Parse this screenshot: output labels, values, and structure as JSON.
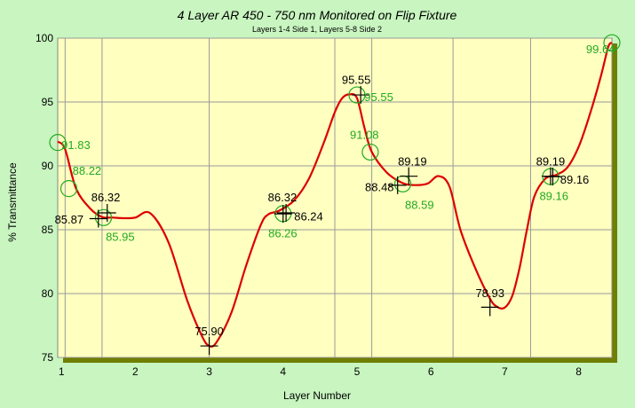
{
  "chart_data": {
    "type": "line",
    "title": "4 Layer AR 450 - 750 nm Monitored on Flip Fixture",
    "subtitle": "Layers 1-4 Side 1, Layers 5-8 Side 2",
    "xlabel": "Layer Number",
    "ylabel": "% Transmittance",
    "xlim": [
      0.95,
      8.45
    ],
    "ylim": [
      75,
      100
    ],
    "y_ticks": [
      75,
      80,
      85,
      90,
      95,
      100
    ],
    "x_ticks": [
      1,
      2,
      3,
      4,
      5,
      6,
      7,
      8
    ],
    "grid_x": [
      1.05,
      1.55,
      3.0,
      4.7,
      5.2,
      6.3,
      7.35
    ],
    "curve": {
      "color": "#dd0000",
      "x": [
        0.95,
        1.05,
        1.2,
        1.4,
        1.55,
        1.7,
        1.85,
        2.0,
        2.2,
        2.45,
        2.7,
        2.9,
        3.0,
        3.1,
        3.3,
        3.5,
        3.7,
        3.8,
        3.95,
        4.15,
        4.35,
        4.55,
        4.7,
        4.8,
        4.9,
        5.0,
        5.1,
        5.2,
        5.4,
        5.6,
        5.75,
        5.95,
        6.1,
        6.25,
        6.4,
        6.6,
        6.8,
        6.9,
        7.0,
        7.1,
        7.2,
        7.3,
        7.4,
        7.55,
        7.7,
        7.85,
        8.0,
        8.15,
        8.3,
        8.4,
        8.45
      ],
      "y": [
        91.9,
        91.3,
        88.2,
        86.6,
        86.0,
        85.95,
        85.9,
        85.95,
        86.3,
        84.0,
        79.5,
        76.7,
        75.9,
        76.2,
        78.5,
        82.2,
        85.4,
        86.2,
        86.5,
        87.3,
        89.0,
        91.8,
        94.2,
        95.3,
        95.6,
        95.3,
        93.0,
        91.1,
        89.5,
        88.7,
        88.5,
        88.6,
        89.2,
        88.4,
        85.0,
        82.0,
        79.6,
        78.95,
        78.9,
        79.8,
        82.0,
        85.0,
        87.6,
        89.0,
        89.3,
        89.9,
        91.5,
        94.0,
        97.0,
        99.3,
        99.64
      ]
    },
    "cross_markers": [
      {
        "x": 1.5,
        "y": 85.87
      },
      {
        "x": 1.62,
        "y": 86.32
      },
      {
        "x": 3.0,
        "y": 75.9
      },
      {
        "x": 4.0,
        "y": 86.24
      },
      {
        "x": 4.04,
        "y": 86.32
      },
      {
        "x": 5.05,
        "y": 95.55
      },
      {
        "x": 5.55,
        "y": 88.48
      },
      {
        "x": 5.7,
        "y": 89.19
      },
      {
        "x": 6.8,
        "y": 78.93
      },
      {
        "x": 7.65,
        "y": 89.16
      },
      {
        "x": 7.62,
        "y": 89.19
      }
    ],
    "circle_markers": [
      {
        "x": 0.95,
        "y": 91.83
      },
      {
        "x": 1.1,
        "y": 88.22
      },
      {
        "x": 1.57,
        "y": 85.95
      },
      {
        "x": 4.0,
        "y": 86.26
      },
      {
        "x": 5.0,
        "y": 95.55
      },
      {
        "x": 5.18,
        "y": 91.08
      },
      {
        "x": 5.62,
        "y": 88.59
      },
      {
        "x": 7.62,
        "y": 89.16
      },
      {
        "x": 8.45,
        "y": 99.64
      }
    ],
    "data_labels": [
      {
        "text": "91.83",
        "x": 1.0,
        "y": 91.6,
        "color": "green",
        "anchor": "start"
      },
      {
        "text": "88.22",
        "x": 1.15,
        "y": 89.6,
        "color": "green",
        "anchor": "start"
      },
      {
        "text": "86.32",
        "x": 1.6,
        "y": 87.5,
        "color": "black",
        "anchor": "middle"
      },
      {
        "text": "85.87",
        "x": 1.3,
        "y": 85.75,
        "color": "black",
        "anchor": "end"
      },
      {
        "text": "85.95",
        "x": 1.6,
        "y": 84.4,
        "color": "green",
        "anchor": "start"
      },
      {
        "text": "75.90",
        "x": 3.0,
        "y": 77.0,
        "color": "black",
        "anchor": "middle"
      },
      {
        "text": "86.32",
        "x": 3.99,
        "y": 87.5,
        "color": "black",
        "anchor": "middle"
      },
      {
        "text": "86.24",
        "x": 4.15,
        "y": 86.0,
        "color": "black",
        "anchor": "start"
      },
      {
        "text": "86.26",
        "x": 3.8,
        "y": 84.7,
        "color": "green",
        "anchor": "start"
      },
      {
        "text": "95.55",
        "x": 4.99,
        "y": 96.7,
        "color": "black",
        "anchor": "middle"
      },
      {
        "text": "95.55",
        "x": 5.1,
        "y": 95.35,
        "color": "green",
        "anchor": "start"
      },
      {
        "text": "91.08",
        "x": 5.1,
        "y": 92.4,
        "color": "green",
        "anchor": "middle"
      },
      {
        "text": "89.19",
        "x": 5.75,
        "y": 90.3,
        "color": "black",
        "anchor": "middle"
      },
      {
        "text": "88.48",
        "x": 5.5,
        "y": 88.3,
        "color": "black",
        "anchor": "end"
      },
      {
        "text": "88.59",
        "x": 5.65,
        "y": 86.9,
        "color": "green",
        "anchor": "start"
      },
      {
        "text": "78.93",
        "x": 6.8,
        "y": 80.0,
        "color": "black",
        "anchor": "middle"
      },
      {
        "text": "89.19",
        "x": 7.62,
        "y": 90.3,
        "color": "black",
        "anchor": "middle"
      },
      {
        "text": "89.16",
        "x": 7.75,
        "y": 88.9,
        "color": "black",
        "anchor": "start"
      },
      {
        "text": "89.16",
        "x": 7.47,
        "y": 87.6,
        "color": "green",
        "anchor": "start"
      },
      {
        "text": "99.64",
        "x": 8.1,
        "y": 99.1,
        "color": "green",
        "anchor": "start"
      }
    ],
    "colors": {
      "page_background": "#c8f5c0",
      "plot_background": "#ffffc0",
      "plot_shadow": "#6f7f00",
      "grid": "#9a9a9a",
      "curve": "#dd0000",
      "label_green": "#22aa22"
    }
  }
}
